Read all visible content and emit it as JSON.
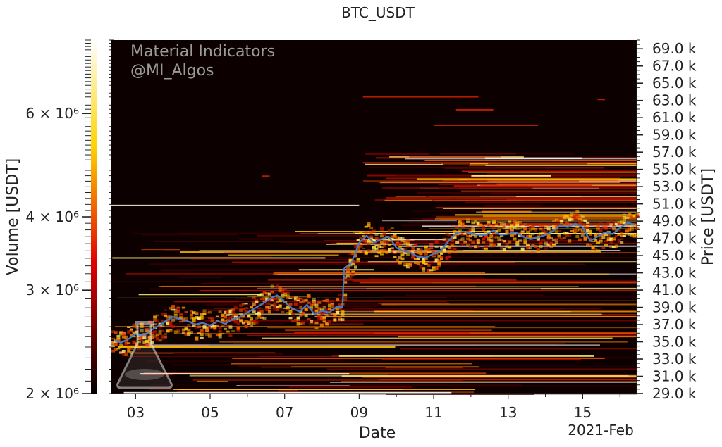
{
  "chart_data": {
    "type": "heatmap",
    "title": "BTC_USDT",
    "xlabel": "Date",
    "x_offset_label": "2021-Feb",
    "x_ticks": [
      "03",
      "05",
      "07",
      "09",
      "11",
      "13",
      "15"
    ],
    "x_tick_days": [
      3,
      5,
      7,
      9,
      11,
      13,
      15
    ],
    "x_range_days": [
      2.35,
      16.45
    ],
    "ylabel_right": "Price [USDT]",
    "price_ticks": [
      "29.0 k",
      "31.0 k",
      "33.0 k",
      "35.0 k",
      "37.0 k",
      "39.0 k",
      "41.0 k",
      "43.0 k",
      "45.0 k",
      "47.0 k",
      "49.0 k",
      "51.0 k",
      "53.0 k",
      "55.0 k",
      "57.0 k",
      "59.0 k",
      "61.0 k",
      "63.0 k",
      "65.0 k",
      "67.0 k",
      "69.0 k"
    ],
    "price_tick_values": [
      29000,
      31000,
      33000,
      35000,
      37000,
      39000,
      41000,
      43000,
      45000,
      47000,
      49000,
      51000,
      53000,
      55000,
      57000,
      59000,
      61000,
      63000,
      65000,
      67000,
      69000
    ],
    "price_range": [
      29000,
      70000
    ],
    "colorbar": {
      "label": "Volume [USDT]",
      "scale": "log",
      "range": [
        2000000,
        8000000
      ],
      "tick_labels": [
        "2 × 10⁶",
        "3 × 10⁶",
        "4 × 10⁶",
        "6 × 10⁶"
      ],
      "tick_values": [
        2000000,
        3000000,
        4000000,
        6000000
      ],
      "colormap": "hot"
    },
    "price_series": {
      "name": "",
      "color": "#4a78c4",
      "points": [
        [
          2.45,
          35200
        ],
        [
          2.6,
          34900
        ],
        [
          2.8,
          35300
        ],
        [
          3.0,
          35900
        ],
        [
          3.2,
          35700
        ],
        [
          3.4,
          36300
        ],
        [
          3.6,
          36800
        ],
        [
          3.8,
          37400
        ],
        [
          4.0,
          37900
        ],
        [
          4.2,
          37600
        ],
        [
          4.4,
          37400
        ],
        [
          4.6,
          37000
        ],
        [
          4.8,
          37200
        ],
        [
          5.0,
          36900
        ],
        [
          5.2,
          37400
        ],
        [
          5.4,
          37100
        ],
        [
          5.6,
          37600
        ],
        [
          5.8,
          37900
        ],
        [
          6.0,
          38400
        ],
        [
          6.2,
          38900
        ],
        [
          6.4,
          39400
        ],
        [
          6.6,
          40000
        ],
        [
          6.8,
          40400
        ],
        [
          7.0,
          39600
        ],
        [
          7.2,
          38900
        ],
        [
          7.4,
          38500
        ],
        [
          7.6,
          39300
        ],
        [
          7.8,
          38200
        ],
        [
          8.0,
          38600
        ],
        [
          8.2,
          38400
        ],
        [
          8.4,
          39100
        ],
        [
          8.55,
          39000
        ],
        [
          8.6,
          43500
        ],
        [
          8.8,
          44200
        ],
        [
          9.0,
          46500
        ],
        [
          9.2,
          47300
        ],
        [
          9.4,
          46500
        ],
        [
          9.6,
          46900
        ],
        [
          9.8,
          47200
        ],
        [
          10.0,
          45900
        ],
        [
          10.2,
          45500
        ],
        [
          10.4,
          45300
        ],
        [
          10.6,
          44800
        ],
        [
          10.8,
          44800
        ],
        [
          11.0,
          45200
        ],
        [
          11.2,
          45600
        ],
        [
          11.4,
          46700
        ],
        [
          11.6,
          47600
        ],
        [
          11.8,
          47800
        ],
        [
          12.0,
          47600
        ],
        [
          12.2,
          47400
        ],
        [
          12.4,
          47400
        ],
        [
          12.6,
          47900
        ],
        [
          12.8,
          47400
        ],
        [
          13.0,
          47500
        ],
        [
          13.2,
          47700
        ],
        [
          13.4,
          47200
        ],
        [
          13.6,
          46900
        ],
        [
          13.8,
          47100
        ],
        [
          14.0,
          47400
        ],
        [
          14.2,
          47800
        ],
        [
          14.4,
          48500
        ],
        [
          14.6,
          48300
        ],
        [
          14.8,
          48700
        ],
        [
          15.0,
          48300
        ],
        [
          15.2,
          46700
        ],
        [
          15.4,
          47200
        ],
        [
          15.6,
          47700
        ],
        [
          15.8,
          47500
        ],
        [
          16.0,
          48200
        ],
        [
          16.2,
          48800
        ],
        [
          16.4,
          48600
        ]
      ]
    },
    "grid": false,
    "legend": "none"
  },
  "watermark": {
    "line1": "Material Indicators",
    "line2": "@MI_Algos",
    "logo": "flask-icon"
  },
  "colors": {
    "background": "#0c0000",
    "price_line": "#4a78c4"
  }
}
